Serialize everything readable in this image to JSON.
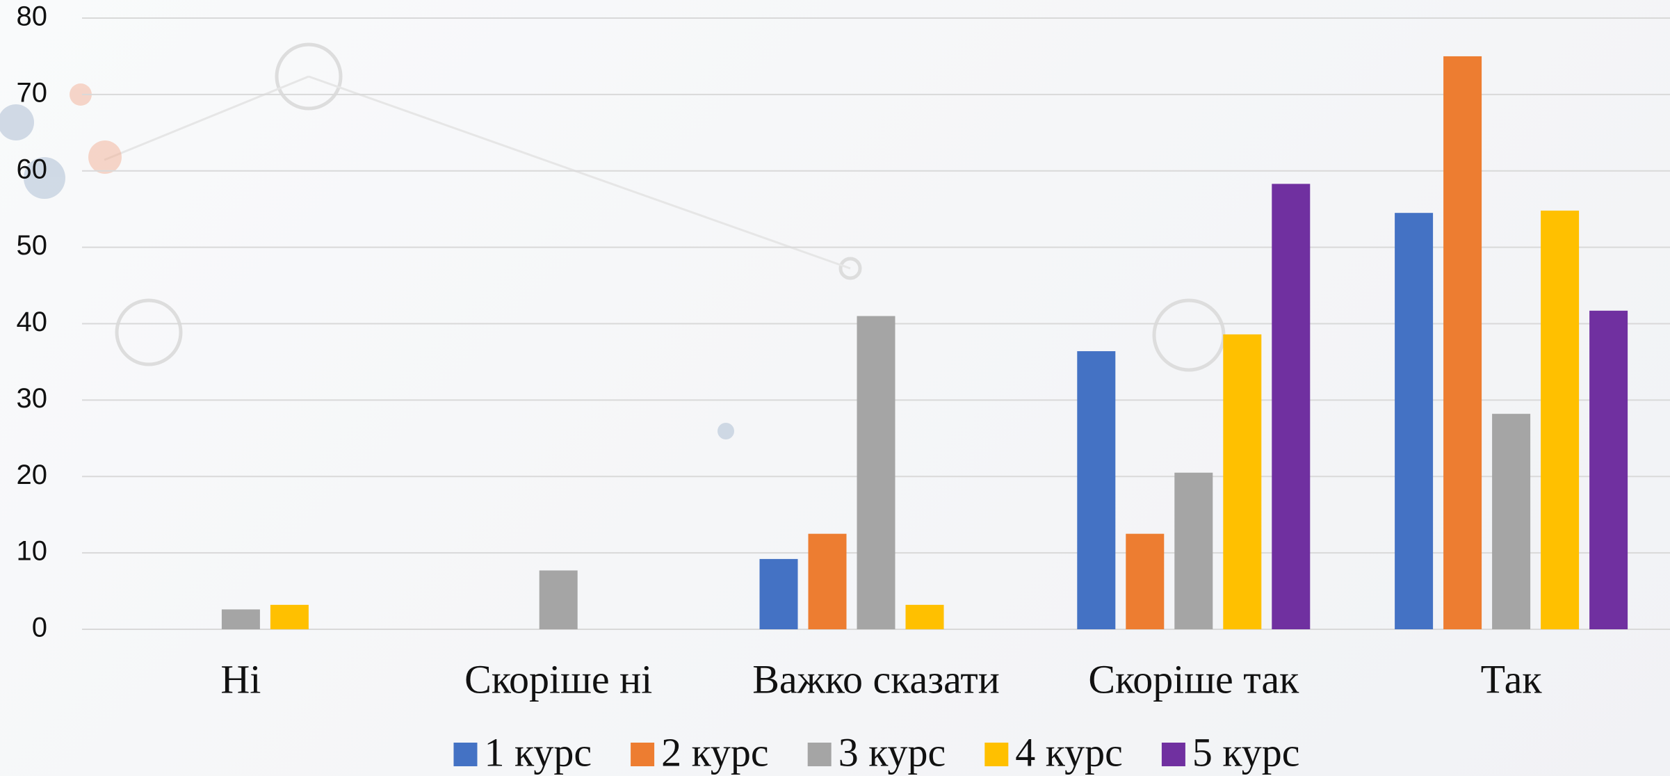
{
  "chart_data": {
    "type": "bar",
    "categories": [
      "Ні",
      "Скоріше ні",
      "Важко сказати",
      "Скоріше так",
      "Так"
    ],
    "series": [
      {
        "name": "1 курс",
        "color": "#4472c4",
        "values": [
          0,
          0,
          9.2,
          36.4,
          54.5
        ]
      },
      {
        "name": "2 курс",
        "color": "#ed7d31",
        "values": [
          0,
          0,
          12.5,
          12.5,
          75.0
        ]
      },
      {
        "name": "3 курс",
        "color": "#a5a5a5",
        "values": [
          2.6,
          7.7,
          41.0,
          20.5,
          28.2
        ]
      },
      {
        "name": "4 курс",
        "color": "#ffc000",
        "values": [
          3.2,
          0,
          3.2,
          38.6,
          54.8
        ]
      },
      {
        "name": "5 курс",
        "color": "#7030a0",
        "values": [
          0,
          0,
          0,
          58.3,
          41.7
        ]
      }
    ],
    "ylim": [
      0,
      80
    ],
    "yticks": [
      0,
      10,
      20,
      30,
      40,
      50,
      60,
      70,
      80
    ],
    "grid": true,
    "legend": "bottom"
  }
}
